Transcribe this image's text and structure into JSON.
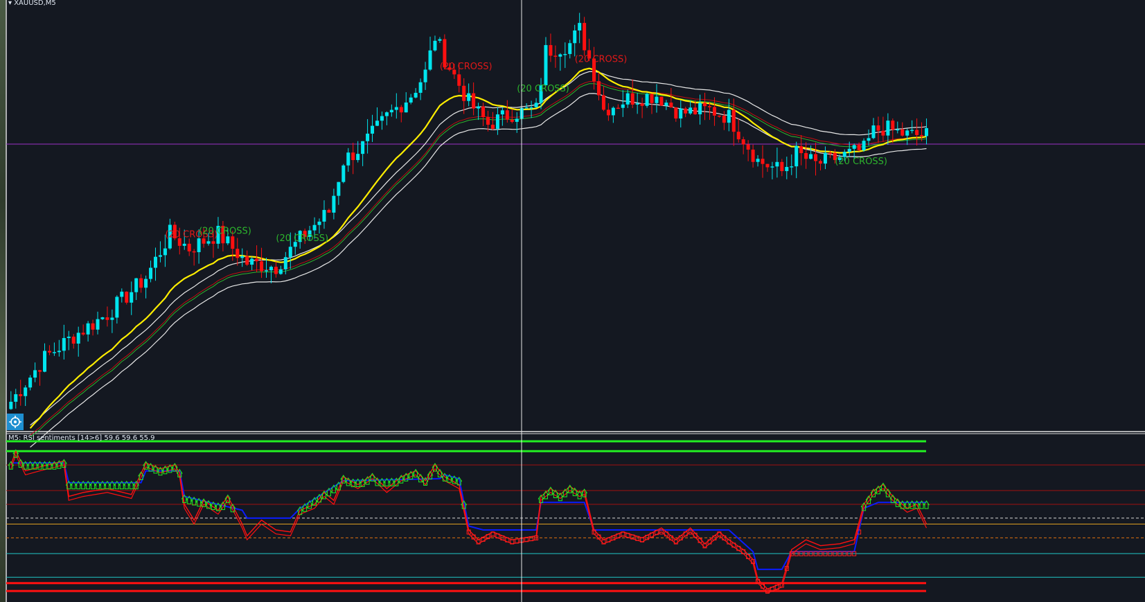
{
  "window": {
    "title": "XAUUSD,M5",
    "menu_icon": "triangle-down-icon"
  },
  "indicator": {
    "label": "M5: RSI sentiments [14>6]  59.6 59.6 55.9"
  },
  "crosshair_button": {
    "icon": "crosshair-target-icon"
  },
  "colors": {
    "background": "#141821",
    "bull": "#00e5ee",
    "bear": "#ff1010",
    "ma_fast": "#ffee00",
    "band": "#e8e8e8",
    "mid_green": "#2db52d",
    "mid_red": "#c01010",
    "rsi_smooth": "#0a1cff",
    "rsi_fast": "#ff1010",
    "arrow_up": "#22ee22",
    "box_down": "#ff2020",
    "price_line": "#9b30c8"
  },
  "annotations": [
    {
      "text": "(20 CROSS)",
      "color": "#e01818"
    },
    {
      "text": "(20 CROSS)",
      "color": "#e01818"
    },
    {
      "text": "(20 CROSS)",
      "color": "#e01818"
    },
    {
      "text": "(20 CROSS)",
      "color": "#2db52d"
    },
    {
      "text": "(20 CROSS)",
      "color": "#2db52d"
    },
    {
      "text": "(20 CROSS)",
      "color": "#2db52d"
    },
    {
      "text": "(20 CROSS)",
      "color": "#2db52d"
    }
  ],
  "chart_data": [
    {
      "type": "candlestick",
      "title": "XAUUSD,M5",
      "bars": 191,
      "close_path": [
        [
          0,
          10
        ],
        [
          7,
          22
        ],
        [
          13,
          28
        ],
        [
          20,
          34
        ],
        [
          28,
          44
        ],
        [
          33,
          56
        ],
        [
          37,
          52
        ],
        [
          43,
          56
        ],
        [
          49,
          48
        ],
        [
          55,
          47
        ],
        [
          61,
          56
        ],
        [
          66,
          62
        ],
        [
          69,
          76
        ],
        [
          73,
          80
        ],
        [
          78,
          88
        ],
        [
          83,
          94
        ],
        [
          86,
          100
        ],
        [
          88,
          110
        ],
        [
          90,
          104
        ],
        [
          95,
          92
        ],
        [
          99,
          86
        ],
        [
          104,
          89
        ],
        [
          109,
          90
        ],
        [
          111,
          106
        ],
        [
          116,
          108
        ],
        [
          118,
          112
        ],
        [
          121,
          100
        ],
        [
          123,
          90
        ],
        [
          128,
          93
        ],
        [
          134,
          94
        ],
        [
          139,
          89
        ],
        [
          145,
          90
        ],
        [
          149,
          88
        ],
        [
          155,
          76
        ],
        [
          160,
          73
        ],
        [
          163,
          78
        ],
        [
          167,
          75
        ],
        [
          172,
          77
        ],
        [
          177,
          79
        ],
        [
          179,
          84
        ],
        [
          181,
          85
        ],
        [
          186,
          83
        ],
        [
          190,
          83
        ]
      ],
      "overlays": [
        "yellow moving average",
        "white bands",
        "green line",
        "red line"
      ],
      "current_price_line": 83
    },
    {
      "type": "line",
      "title": "M5: RSI sentiments [14>6]",
      "ylim": [
        13,
        90
      ],
      "values_shown": [
        59.6,
        59.6,
        55.9
      ],
      "levels": [
        {
          "value": 90,
          "color": "#22ee22",
          "style": "thick"
        },
        {
          "value": 85,
          "color": "#22ee22",
          "style": "thick"
        },
        {
          "value": 78,
          "color": "#a01010",
          "style": "solid"
        },
        {
          "value": 65,
          "color": "#a01010",
          "style": "solid"
        },
        {
          "value": 58,
          "color": "#a01010",
          "style": "solid"
        },
        {
          "value": 51,
          "color": "#d8d8d8",
          "style": "dashed"
        },
        {
          "value": 48,
          "color": "#e0a020",
          "style": "solid"
        },
        {
          "value": 41,
          "color": "#e07010",
          "style": "dashed"
        },
        {
          "value": 33,
          "color": "#20c8c8",
          "style": "solid"
        },
        {
          "value": 21,
          "color": "#20c8c8",
          "style": "solid"
        },
        {
          "value": 18,
          "color": "#ff1010",
          "style": "thick"
        },
        {
          "value": 14,
          "color": "#ff1010",
          "style": "thick"
        }
      ],
      "series": [
        {
          "values": [
            [
              0,
              79
            ],
            [
              11,
              79
            ],
            [
              12,
              69
            ],
            [
              27,
              69
            ],
            [
              28,
              75
            ],
            [
              35,
              75
            ],
            [
              36,
              62
            ],
            [
              48,
              55
            ],
            [
              49,
              51
            ],
            [
              58,
              51
            ],
            [
              60,
              56
            ],
            [
              67,
              67
            ],
            [
              69,
              70
            ],
            [
              89,
              71
            ],
            [
              90,
              73
            ],
            [
              93,
              71
            ],
            [
              95,
              47
            ],
            [
              98,
              45
            ],
            [
              109,
              45
            ],
            [
              110,
              59
            ],
            [
              119,
              59
            ],
            [
              121,
              45
            ],
            [
              149,
              45
            ],
            [
              154,
              34
            ],
            [
              155,
              25
            ],
            [
              160,
              25
            ],
            [
              162,
              34
            ],
            [
              175,
              34
            ],
            [
              177,
              56
            ],
            [
              180,
              59
            ],
            [
              190,
              59
            ]
          ]
        },
        {
          "values": [
            [
              0,
              78
            ],
            [
              1,
              85
            ],
            [
              3,
              75
            ],
            [
              6,
              77
            ],
            [
              11,
              80
            ],
            [
              12,
              62
            ],
            [
              15,
              64
            ],
            [
              20,
              66
            ],
            [
              25,
              63
            ],
            [
              28,
              79
            ],
            [
              31,
              76
            ],
            [
              34,
              78
            ],
            [
              35,
              74
            ],
            [
              36,
              58
            ],
            [
              38,
              50
            ],
            [
              40,
              60
            ],
            [
              43,
              55
            ],
            [
              45,
              62
            ],
            [
              48,
              48
            ],
            [
              49,
              42
            ],
            [
              52,
              50
            ],
            [
              55,
              45
            ],
            [
              58,
              44
            ],
            [
              60,
              55
            ],
            [
              63,
              58
            ],
            [
              65,
              64
            ],
            [
              67,
              60
            ],
            [
              69,
              72
            ],
            [
              72,
              68
            ],
            [
              75,
              73
            ],
            [
              78,
              66
            ],
            [
              81,
              72
            ],
            [
              84,
              75
            ],
            [
              86,
              70
            ],
            [
              88,
              78
            ],
            [
              90,
              72
            ],
            [
              93,
              68
            ],
            [
              95,
              45
            ],
            [
              97,
              40
            ],
            [
              100,
              44
            ],
            [
              104,
              40
            ],
            [
              109,
              42
            ],
            [
              110,
              62
            ],
            [
              112,
              66
            ],
            [
              114,
              63
            ],
            [
              116,
              67
            ],
            [
              118,
              64
            ],
            [
              119,
              65
            ],
            [
              121,
              45
            ],
            [
              123,
              40
            ],
            [
              127,
              44
            ],
            [
              131,
              41
            ],
            [
              135,
              46
            ],
            [
              138,
              40
            ],
            [
              141,
              46
            ],
            [
              144,
              38
            ],
            [
              147,
              44
            ],
            [
              149,
              40
            ],
            [
              152,
              35
            ],
            [
              154,
              30
            ],
            [
              155,
              20
            ],
            [
              157,
              15
            ],
            [
              160,
              18
            ],
            [
              162,
              35
            ],
            [
              165,
              40
            ],
            [
              168,
              37
            ],
            [
              172,
              38
            ],
            [
              175,
              40
            ],
            [
              177,
              58
            ],
            [
              179,
              65
            ],
            [
              181,
              68
            ],
            [
              183,
              62
            ],
            [
              186,
              56
            ],
            [
              188,
              58
            ],
            [
              190,
              48
            ]
          ]
        }
      ]
    }
  ]
}
